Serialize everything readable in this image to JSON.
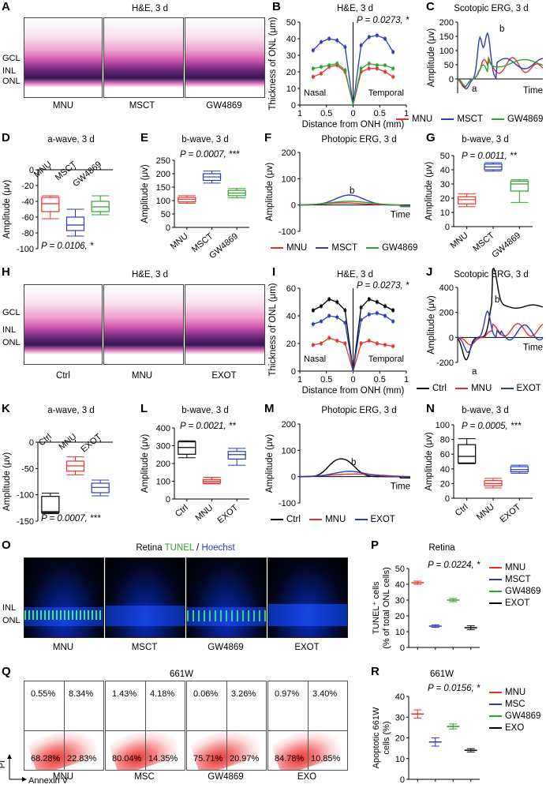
{
  "panels": {
    "A": {
      "letter": "A",
      "title": "H&E, 3 d",
      "layers": [
        "GCL",
        "INL",
        "ONL"
      ],
      "groups": [
        "MNU",
        "MSCT",
        "GW4869"
      ]
    },
    "B": {
      "letter": "B",
      "title": "H&E, 3 d",
      "stat": "P = 0.0273, *",
      "ylabel": "Thickness of ONL (μm)",
      "xlabel": "Distance from ONH (mm)",
      "left_side": "Nasal",
      "right_side": "Temporal"
    },
    "C": {
      "letter": "C",
      "title": "Scotopic ERG, 3 d",
      "ylabel": "Amplitude (μv)",
      "xlabel": "Time",
      "wave_a": "a",
      "wave_b": "b"
    },
    "D": {
      "letter": "D",
      "title": "a-wave, 3 d",
      "stat": "P = 0.0106, *",
      "ylabel": "Amplitude (μv)",
      "groups": [
        "MNU",
        "MSCT",
        "GW4869"
      ]
    },
    "E": {
      "letter": "E",
      "title": "b-wave, 3 d",
      "stat": "P = 0.0007, ***",
      "ylabel": "Amplitude (μv)",
      "groups": [
        "MNU",
        "MSCT",
        "GW4869"
      ]
    },
    "F": {
      "letter": "F",
      "title": "Photopic ERG, 3 d",
      "ylabel": "Amplitude (μv)",
      "xlabel": "Time",
      "wave_b": "b"
    },
    "G": {
      "letter": "G",
      "title": "b-wave, 3 d",
      "stat": "P = 0.0011, **",
      "ylabel": "Amplitude (μv)",
      "groups": [
        "MNU",
        "MSCT",
        "GW4869"
      ]
    },
    "H": {
      "letter": "H",
      "title": "H&E, 3 d",
      "layers": [
        "GCL",
        "INL",
        "ONL"
      ],
      "groups": [
        "Ctrl",
        "MNU",
        "EXOT"
      ]
    },
    "I": {
      "letter": "I",
      "title": "H&E, 3 d",
      "stat": "P = 0.0273, *",
      "ylabel": "Thickness of ONL (μm)",
      "xlabel": "Distance from ONH (mm)",
      "left_side": "Nasal",
      "right_side": "Temporal"
    },
    "J": {
      "letter": "J",
      "title": "Scotopic ERG, 3 d",
      "ylabel": "Amplitude (μv)",
      "xlabel": "Time",
      "wave_a": "a",
      "wave_b": "b"
    },
    "K": {
      "letter": "K",
      "title": "a-wave, 3 d",
      "stat": "P = 0.0007, ***",
      "ylabel": "Amplitude (μv)",
      "groups": [
        "Ctrl",
        "MNU",
        "EXOT"
      ]
    },
    "L": {
      "letter": "L",
      "title": "b-wave, 3 d",
      "stat": "P = 0.0021, **",
      "ylabel": "Amplitude (μv)",
      "groups": [
        "Ctrl",
        "MNU",
        "EXOT"
      ]
    },
    "M": {
      "letter": "M",
      "title": "Photopic ERG, 3 d",
      "ylabel": "Amplitude (μv)",
      "xlabel": "Time",
      "wave_b": "b"
    },
    "N": {
      "letter": "N",
      "title": "b-wave, 3 d",
      "stat": "P = 0.0005, ***",
      "ylabel": "Amplitude (μv)",
      "groups": [
        "Ctrl",
        "MNU",
        "EXOT"
      ]
    },
    "O": {
      "letter": "O",
      "title_a": "Retina ",
      "title_b": "TUNEL",
      "title_c": " / ",
      "title_d": "Hoechst",
      "layers": [
        "INL",
        "ONL"
      ],
      "groups": [
        "MNU",
        "MSCT",
        "GW4869",
        "EXOT"
      ]
    },
    "P": {
      "letter": "P",
      "title": "Retina",
      "stat": "P = 0.0224, *",
      "ylabel": "TUNEL⁺ cells (% of total ONL cells)",
      "ylabel_1": "TUNEL⁺ cells",
      "ylabel_2": "(% of total ONL cells)"
    },
    "Q": {
      "letter": "Q",
      "title": "661W",
      "axis_y": "PI",
      "axis_x": "Annexin V",
      "groups": [
        "MNU",
        "MSC",
        "GW4869",
        "EXO"
      ],
      "quadrants": [
        [
          "0.55%",
          "8.34%",
          "68.28%",
          "22.83%"
        ],
        [
          "1.43%",
          "4.18%",
          "80.04%",
          "14.35%"
        ],
        [
          "0.06%",
          "3.26%",
          "75.71%",
          "20.97%"
        ],
        [
          "0.97%",
          "3.40%",
          "84.78%",
          "10.85%"
        ]
      ]
    },
    "R": {
      "letter": "R",
      "title": "661W",
      "stat": "P = 0.0156, *",
      "ylabel_1": "Apoptotic 661W",
      "ylabel_2": "cells (%)"
    }
  },
  "legend_1": [
    "MNU",
    "MSCT",
    "GW4869"
  ],
  "legend_2": [
    "Ctrl",
    "MNU",
    "EXOT"
  ],
  "legend_P": [
    "MNU",
    "MSCT",
    "GW4869",
    "EXOT"
  ],
  "legend_R": [
    "MNU",
    "MSC",
    "GW4869",
    "EXO"
  ],
  "colors": {
    "red": "#e8312f",
    "blue": "#2b3bb8",
    "green": "#2fa22f",
    "black": "#000000"
  },
  "chart_data": [
    {
      "id": "B",
      "type": "line",
      "x": [
        -0.75,
        -0.6,
        -0.45,
        -0.3,
        -0.15,
        0,
        0.15,
        0.3,
        0.45,
        0.6,
        0.75
      ],
      "xticks": [
        "1",
        "0.5",
        "0",
        "0.5",
        "1"
      ],
      "ylim": [
        0,
        50
      ],
      "yticks": [
        0,
        10,
        20,
        30,
        40,
        50
      ],
      "series": [
        {
          "name": "MNU",
          "values": [
            17,
            19,
            23,
            24,
            20,
            0,
            20,
            22,
            22,
            20,
            17
          ]
        },
        {
          "name": "MSCT",
          "values": [
            33,
            38,
            40,
            39,
            35,
            0,
            36,
            41,
            42,
            40,
            32
          ]
        },
        {
          "name": "GW4869",
          "values": [
            22,
            23,
            24,
            25,
            21,
            0,
            22,
            25,
            24,
            24,
            22
          ]
        }
      ]
    },
    {
      "id": "D",
      "type": "box",
      "groups": [
        "MNU",
        "MSCT",
        "GW4869"
      ],
      "ylim": [
        -100,
        0
      ],
      "yticks": [
        0,
        -20,
        -40,
        -60,
        -80,
        -100
      ],
      "boxes": [
        {
          "min": -62,
          "q1": -53,
          "median": -43,
          "q3": -35,
          "max": -33
        },
        {
          "min": -84,
          "q1": -77,
          "median": -70,
          "q3": -60,
          "max": -50
        },
        {
          "min": -57,
          "q1": -53,
          "median": -47,
          "q3": -40,
          "max": -33
        }
      ]
    },
    {
      "id": "E",
      "type": "box",
      "groups": [
        "MNU",
        "MSCT",
        "GW4869"
      ],
      "ylim": [
        0,
        250
      ],
      "yticks": [
        0,
        50,
        100,
        150,
        200,
        250
      ],
      "boxes": [
        {
          "min": 90,
          "q1": 95,
          "median": 105,
          "q3": 112,
          "max": 118
        },
        {
          "min": 165,
          "q1": 175,
          "median": 188,
          "q3": 200,
          "max": 210
        },
        {
          "min": 110,
          "q1": 118,
          "median": 128,
          "q3": 138,
          "max": 145
        }
      ]
    },
    {
      "id": "G",
      "type": "box",
      "groups": [
        "MNU",
        "MSCT",
        "GW4869"
      ],
      "ylim": [
        0,
        50
      ],
      "yticks": [
        0,
        10,
        20,
        30,
        40,
        50
      ],
      "boxes": [
        {
          "min": 14,
          "q1": 16,
          "median": 19,
          "q3": 21,
          "max": 23
        },
        {
          "min": 39,
          "q1": 40,
          "median": 42,
          "q3": 44,
          "max": 45
        },
        {
          "min": 17,
          "q1": 25,
          "median": 30,
          "q3": 32,
          "max": 33
        }
      ]
    },
    {
      "id": "I",
      "type": "line",
      "x": [
        -0.75,
        -0.6,
        -0.45,
        -0.3,
        -0.15,
        0,
        0.15,
        0.3,
        0.45,
        0.6,
        0.75
      ],
      "xticks": [
        "1",
        "0.5",
        "0",
        "0.5",
        "1"
      ],
      "ylim": [
        0,
        60
      ],
      "yticks": [
        0,
        20,
        40,
        60
      ],
      "series": [
        {
          "name": "Ctrl",
          "values": [
            44,
            47,
            52,
            50,
            44,
            0,
            46,
            52,
            50,
            47,
            44
          ]
        },
        {
          "name": "MNU",
          "values": [
            19,
            20,
            24,
            22,
            20,
            0,
            20,
            22,
            20,
            19,
            18
          ]
        },
        {
          "name": "EXOT",
          "values": [
            34,
            36,
            40,
            39,
            35,
            0,
            37,
            41,
            42,
            40,
            36
          ]
        }
      ]
    },
    {
      "id": "K",
      "type": "box",
      "groups": [
        "Ctrl",
        "MNU",
        "EXOT"
      ],
      "ylim": [
        -150,
        0
      ],
      "yticks": [
        0,
        -50,
        -100,
        -150
      ],
      "boxes": [
        {
          "min": -136,
          "q1": -134,
          "median": -132,
          "q3": -103,
          "max": -97
        },
        {
          "min": -62,
          "q1": -55,
          "median": -45,
          "q3": -36,
          "max": -28
        },
        {
          "min": -102,
          "q1": -96,
          "median": -86,
          "q3": -78,
          "max": -72
        }
      ]
    },
    {
      "id": "L",
      "type": "box",
      "groups": [
        "Ctrl",
        "MNU",
        "EXOT"
      ],
      "ylim": [
        0,
        400
      ],
      "yticks": [
        0,
        100,
        200,
        300,
        400
      ],
      "boxes": [
        {
          "min": 232,
          "q1": 252,
          "median": 290,
          "q3": 322,
          "max": 328
        },
        {
          "min": 85,
          "q1": 90,
          "median": 100,
          "q3": 110,
          "max": 122
        },
        {
          "min": 190,
          "q1": 225,
          "median": 250,
          "q3": 268,
          "max": 285
        }
      ]
    },
    {
      "id": "N",
      "type": "box",
      "groups": [
        "Ctrl",
        "MNU",
        "EXOT"
      ],
      "ylim": [
        0,
        100
      ],
      "yticks": [
        0,
        20,
        40,
        60,
        80,
        100
      ],
      "boxes": [
        {
          "min": 47,
          "q1": 48,
          "median": 57,
          "q3": 73,
          "max": 81
        },
        {
          "min": 14,
          "q1": 17,
          "median": 20,
          "q3": 24,
          "max": 27
        },
        {
          "min": 34,
          "q1": 36,
          "median": 39,
          "q3": 43,
          "max": 45
        }
      ]
    },
    {
      "id": "P",
      "type": "scatter",
      "groups": [
        "MNU",
        "MSCT",
        "GW4869",
        "EXOT"
      ],
      "ylim": [
        0,
        50
      ],
      "yticks": [
        0,
        10,
        20,
        30,
        40,
        50
      ],
      "points": [
        {
          "mean": 41,
          "err": 1
        },
        {
          "mean": 13.5,
          "err": 0.8
        },
        {
          "mean": 30,
          "err": 1
        },
        {
          "mean": 12.5,
          "err": 1.2
        }
      ]
    },
    {
      "id": "R",
      "type": "scatter",
      "groups": [
        "MNU",
        "MSC",
        "GW4869",
        "EXO"
      ],
      "ylim": [
        0,
        40
      ],
      "yticks": [
        0,
        10,
        20,
        30,
        40
      ],
      "points": [
        {
          "mean": 31.5,
          "err": 2
        },
        {
          "mean": 18,
          "err": 2
        },
        {
          "mean": 25.5,
          "err": 1.2
        },
        {
          "mean": 14,
          "err": 0.8
        }
      ]
    }
  ]
}
